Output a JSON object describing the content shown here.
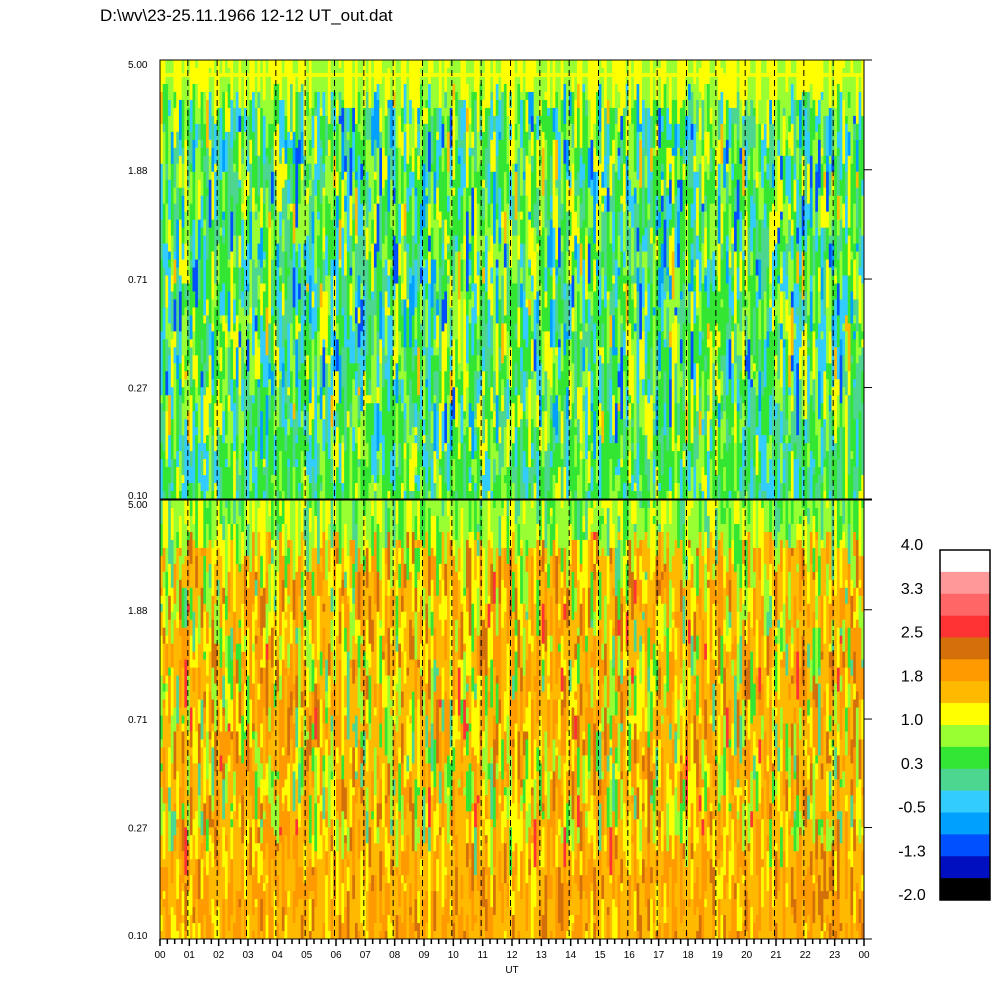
{
  "title": "D:\\wv\\23-25.11.1966  12-12 UT_out.dat",
  "chart_data": [
    {
      "type": "heatmap",
      "panel": "top",
      "y_scale": "log",
      "ylim": [
        0.1,
        5.0
      ],
      "y_ticks": [
        "0.10",
        "0.27",
        "0.71",
        "1.88",
        "5.00"
      ],
      "x_ticks": [
        "00",
        "01",
        "02",
        "03",
        "04",
        "05",
        "06",
        "07",
        "08",
        "09",
        "10",
        "11",
        "12",
        "13",
        "14",
        "15",
        "16",
        "17",
        "18",
        "19",
        "20",
        "21",
        "22",
        "23",
        "00"
      ],
      "xlim": [
        0,
        24
      ],
      "dominant_levels": [
        "-0.5",
        "0.3",
        "1.0"
      ],
      "grid": "dashed vertical lines every hour"
    },
    {
      "type": "heatmap",
      "panel": "bottom",
      "y_scale": "log",
      "ylim": [
        0.1,
        5.0
      ],
      "y_ticks": [
        "0.10",
        "0.27",
        "0.71",
        "1.88",
        "5.00"
      ],
      "x_ticks": [
        "00",
        "01",
        "02",
        "03",
        "04",
        "05",
        "06",
        "07",
        "08",
        "09",
        "10",
        "11",
        "12",
        "13",
        "14",
        "15",
        "16",
        "17",
        "18",
        "19",
        "20",
        "21",
        "22",
        "23",
        "00"
      ],
      "xlim": [
        0,
        24
      ],
      "xlabel": "UT",
      "dominant_levels": [
        "1.0",
        "1.8",
        "2.5"
      ],
      "grid": "dashed vertical lines every hour"
    }
  ],
  "colorbar": {
    "labels": [
      "4.0",
      "3.3",
      "2.5",
      "1.8",
      "1.0",
      "0.3",
      "-0.5",
      "-1.3",
      "-2.0"
    ],
    "colors": [
      "#ffffff",
      "#ff9999",
      "#ff6666",
      "#ff3333",
      "#d4700a",
      "#ff9a00",
      "#ffba00",
      "#ffff00",
      "#99ff33",
      "#33e633",
      "#4dd68f",
      "#33ccff",
      "#00a0ff",
      "#0050ff",
      "#0010c0",
      "#000000"
    ]
  }
}
